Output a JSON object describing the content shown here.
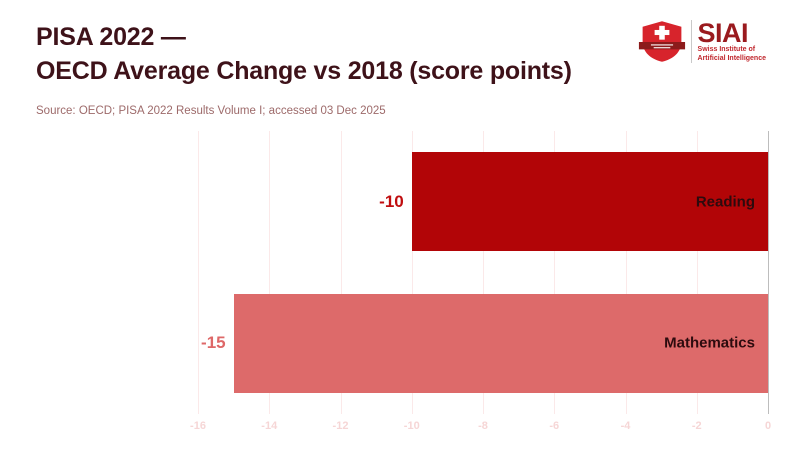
{
  "header": {
    "title_line1": "PISA 2022 —",
    "title_line2": "OECD Average Change vs 2018 (score points)",
    "title_color": "#3e1219",
    "source": "Source: OECD; PISA 2022 Results Volume I; accessed 03 Dec 2025",
    "source_color": "#9d6a6a"
  },
  "logo": {
    "acronym": "SIAI",
    "name_line1": "Swiss Institute of",
    "name_line2": "Artificial Intelligence",
    "acronym_color": "#9a1a1e",
    "name_color": "#c0272d",
    "shield_color": "#d7242c",
    "banner_color": "#8c1b1b"
  },
  "chart_data": {
    "type": "bar",
    "orientation": "horizontal",
    "title": "PISA 2022 — OECD Average Change vs 2018 (score points)",
    "categories": [
      "Reading",
      "Mathematics"
    ],
    "values": [
      -10,
      -15
    ],
    "value_labels": [
      "-10",
      "-15"
    ],
    "bar_colors": [
      "#b20507",
      "#dd6a6a"
    ],
    "value_label_colors": [
      "#c00d0f",
      "#de6868"
    ],
    "category_label_color": "#2d0b0e",
    "xlim": [
      -16,
      0
    ],
    "xticks": [
      -16,
      -14,
      -12,
      -10,
      -8,
      -6,
      -4,
      -2,
      0
    ],
    "grid": true,
    "gridline_color": "#fbe9e9",
    "zero_line_color": "#bdbdbd",
    "tick_label_color": "#f6d6d6",
    "legend": "none"
  }
}
